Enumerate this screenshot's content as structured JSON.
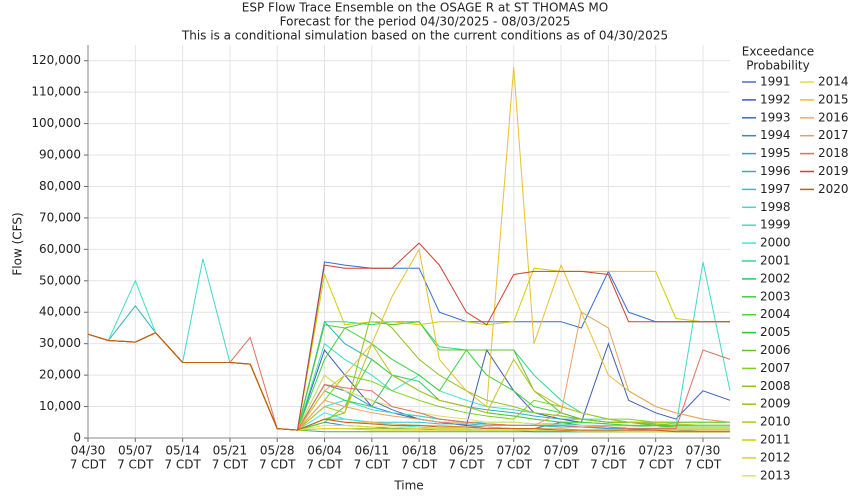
{
  "chart_data": {
    "type": "line",
    "title": "ESP Flow Trace Ensemble on the OSAGE R at ST THOMAS MO",
    "subtitles": [
      "Forecast for the period 04/30/2025 - 08/03/2025",
      "This is a conditional simulation based on the current conditions as of 04/30/2025"
    ],
    "x_label": "Time",
    "y_label": "Flow (CFS)",
    "legend_title": [
      "Exceedance",
      "Probability"
    ],
    "x": [
      "04/30",
      "05/03",
      "05/07",
      "05/10",
      "05/14",
      "05/17",
      "05/21",
      "05/24",
      "05/28",
      "05/31",
      "06/04",
      "06/07",
      "06/11",
      "06/14",
      "06/18",
      "06/21",
      "06/25",
      "06/28",
      "07/02",
      "07/05",
      "07/09",
      "07/12",
      "07/16",
      "07/19",
      "07/23",
      "07/26",
      "07/30",
      "08/03"
    ],
    "xlim": [
      "04/30",
      "08/03"
    ],
    "xticks": [
      "04/30",
      "05/07",
      "05/14",
      "05/21",
      "05/28",
      "06/04",
      "06/11",
      "06/18",
      "06/25",
      "07/02",
      "07/09",
      "07/16",
      "07/23",
      "07/30"
    ],
    "xtick_suffix": "7 CDT",
    "ylim": [
      0,
      125000
    ],
    "yticks": [
      0,
      {
        "value": 10000,
        "label": "10,000"
      },
      {
        "value": 20000,
        "label": "20,000"
      },
      {
        "value": 30000,
        "label": "30,000"
      },
      {
        "value": 40000,
        "label": "40,000"
      },
      {
        "value": 50000,
        "label": "50,000"
      },
      {
        "value": 60000,
        "label": "60,000"
      },
      {
        "value": 70000,
        "label": "70,000"
      },
      {
        "value": 80000,
        "label": "80,000"
      },
      {
        "value": 90000,
        "label": "90,000"
      },
      {
        "value": 100000,
        "label": "100,000"
      },
      {
        "value": 110000,
        "label": "110,000"
      },
      {
        "value": 120000,
        "label": "120,000"
      }
    ],
    "grid": true,
    "series": [
      {
        "name": "1991",
        "color": "#4a6fc0",
        "values": [
          33000,
          31000,
          30500,
          33500,
          24000,
          24000,
          24000,
          23500,
          3000,
          2500,
          17000,
          15000,
          12000,
          9000,
          6000,
          5000,
          4000,
          3500,
          3000,
          3000,
          5000,
          4000,
          3500,
          3000,
          2500,
          2500,
          2000,
          2000
        ]
      },
      {
        "name": "1992",
        "color": "#3d5bb5",
        "values": [
          33000,
          31000,
          30500,
          33500,
          24000,
          24000,
          24000,
          23500,
          3000,
          2500,
          28000,
          20000,
          10000,
          8000,
          6000,
          5000,
          4000,
          28000,
          15000,
          8000,
          6000,
          5000,
          30000,
          12000,
          8000,
          6000,
          15000,
          12000
        ]
      },
      {
        "name": "1993",
        "color": "#2f6fd0",
        "values": [
          33000,
          31000,
          30500,
          33500,
          24000,
          24000,
          24000,
          23500,
          3000,
          2500,
          56000,
          55000,
          54000,
          54000,
          54000,
          40000,
          37000,
          37000,
          37000,
          37000,
          37000,
          35000,
          53000,
          40000,
          37000,
          37000,
          37000,
          37000
        ]
      },
      {
        "name": "1994",
        "color": "#3d84c8",
        "values": [
          33000,
          31000,
          30500,
          33500,
          24000,
          24000,
          24000,
          23500,
          3000,
          2500,
          5000,
          4000,
          3500,
          3000,
          3000,
          2500,
          2500,
          2500,
          2500,
          2000,
          2000,
          2000,
          2000,
          2000,
          2000,
          2000,
          2000,
          2000
        ]
      },
      {
        "name": "1995",
        "color": "#2fa0d0",
        "values": [
          33000,
          31000,
          30500,
          33500,
          24000,
          24000,
          24000,
          23500,
          3000,
          2500,
          20000,
          15000,
          10000,
          8000,
          7000,
          6000,
          5000,
          4500,
          4000,
          4000,
          3500,
          3500,
          3000,
          3000,
          3000,
          3000,
          3000,
          3000
        ]
      },
      {
        "name": "1996",
        "color": "#2fb0c0",
        "values": [
          33000,
          31000,
          42000,
          33500,
          24000,
          24000,
          24000,
          23500,
          3000,
          2500,
          37000,
          30000,
          25000,
          20000,
          15000,
          12000,
          10000,
          9000,
          8000,
          7000,
          6000,
          6000,
          5000,
          5000,
          5000,
          5000,
          5000,
          5000
        ]
      },
      {
        "name": "1997",
        "color": "#30c0d8",
        "values": [
          33000,
          31000,
          30500,
          33500,
          24000,
          24000,
          24000,
          23500,
          3000,
          2500,
          6000,
          6000,
          5000,
          5000,
          5000,
          4500,
          4500,
          4000,
          4000,
          4000,
          3500,
          3500,
          3500,
          3000,
          3000,
          3000,
          3000,
          3000
        ]
      },
      {
        "name": "1998",
        "color": "#40d8d0",
        "values": [
          33000,
          31000,
          30500,
          33500,
          24000,
          57000,
          24000,
          23500,
          3000,
          2500,
          10000,
          12000,
          9000,
          8000,
          7000,
          6000,
          5000,
          5000,
          5000,
          4500,
          4500,
          4000,
          4000,
          4000,
          3500,
          3500,
          56000,
          15000
        ]
      },
      {
        "name": "1999",
        "color": "#40e0c0",
        "values": [
          33000,
          31000,
          50000,
          33500,
          24000,
          24000,
          24000,
          23500,
          3000,
          2500,
          30000,
          25000,
          20000,
          15000,
          20000,
          15000,
          12000,
          10000,
          9000,
          8000,
          7000,
          6000,
          6000,
          5000,
          5000,
          5000,
          5000,
          5000
        ]
      },
      {
        "name": "2000",
        "color": "#40e8e0",
        "values": [
          33000,
          31000,
          30500,
          33500,
          24000,
          24000,
          24000,
          23500,
          3000,
          2500,
          8000,
          6000,
          5000,
          4000,
          3500,
          3000,
          3000,
          2500,
          2500,
          2500,
          2000,
          2000,
          2000,
          2000,
          2000,
          2000,
          2000,
          2000
        ]
      },
      {
        "name": "2001",
        "color": "#30d890",
        "values": [
          33000,
          31000,
          30500,
          33500,
          24000,
          24000,
          24000,
          23500,
          3000,
          2500,
          37000,
          37000,
          36000,
          37000,
          37000,
          29000,
          28000,
          28000,
          28000,
          20000,
          12000,
          8000,
          6000,
          5000,
          4500,
          4000,
          4000,
          4000
        ]
      },
      {
        "name": "2002",
        "color": "#30c860",
        "values": [
          33000,
          31000,
          30500,
          33500,
          24000,
          24000,
          24000,
          23500,
          3000,
          2500,
          15000,
          12000,
          10000,
          20000,
          18000,
          12000,
          10000,
          8000,
          7000,
          6000,
          5000,
          5000,
          4500,
          4000,
          4000,
          3500,
          3500,
          3500
        ]
      },
      {
        "name": "2003",
        "color": "#40d040",
        "values": [
          33000,
          31000,
          30500,
          33500,
          24000,
          24000,
          24000,
          23500,
          3000,
          2500,
          25000,
          35000,
          30000,
          25000,
          20000,
          15000,
          28000,
          20000,
          15000,
          10000,
          8000,
          6000,
          5000,
          5000,
          4000,
          4000,
          4000,
          4000
        ]
      },
      {
        "name": "2004",
        "color": "#50d030",
        "values": [
          33000,
          31000,
          30500,
          33500,
          24000,
          24000,
          24000,
          23500,
          3000,
          2500,
          5000,
          10000,
          25000,
          20000,
          15000,
          12000,
          10000,
          8000,
          7000,
          6000,
          5000,
          5000,
          4500,
          4000,
          4000,
          3500,
          3500,
          3500
        ]
      },
      {
        "name": "2005",
        "color": "#30c030",
        "values": [
          33000,
          31000,
          30500,
          33500,
          24000,
          24000,
          24000,
          23500,
          3000,
          2500,
          2000,
          2000,
          2000,
          2000,
          2000,
          2000,
          2000,
          2000,
          2000,
          2000,
          2000,
          2000,
          2000,
          2000,
          2000,
          2000,
          2000,
          2000
        ]
      },
      {
        "name": "2006",
        "color": "#60c030",
        "values": [
          33000,
          31000,
          30500,
          33500,
          24000,
          24000,
          24000,
          23500,
          3000,
          2500,
          36000,
          35000,
          37000,
          36000,
          37000,
          28000,
          28000,
          28000,
          28000,
          15000,
          8000,
          6000,
          5000,
          5000,
          4000,
          4000,
          4000,
          4000
        ]
      },
      {
        "name": "2007",
        "color": "#80d020",
        "values": [
          33000,
          31000,
          30500,
          33500,
          24000,
          24000,
          24000,
          23500,
          3000,
          2500,
          12000,
          20000,
          18000,
          15000,
          12000,
          10000,
          8000,
          7000,
          6000,
          12000,
          10000,
          8000,
          6000,
          6000,
          5000,
          5000,
          5000,
          5000
        ]
      },
      {
        "name": "2008",
        "color": "#90c020",
        "values": [
          33000,
          31000,
          30500,
          33500,
          24000,
          24000,
          24000,
          23500,
          3000,
          2500,
          6000,
          8000,
          40000,
          35000,
          25000,
          20000,
          15000,
          12000,
          10000,
          8000,
          7000,
          6000,
          5000,
          5000,
          4500,
          4000,
          4000,
          4000
        ]
      },
      {
        "name": "2009",
        "color": "#a0c020",
        "values": [
          33000,
          31000,
          30500,
          33500,
          24000,
          24000,
          24000,
          23500,
          3000,
          2500,
          3000,
          3000,
          3000,
          3000,
          3000,
          3000,
          3000,
          2500,
          2500,
          2500,
          2500,
          2500,
          2500,
          2500,
          2500,
          2500,
          2500,
          2500
        ]
      },
      {
        "name": "2010",
        "color": "#c0c020",
        "values": [
          33000,
          31000,
          30500,
          33500,
          24000,
          24000,
          24000,
          23500,
          3000,
          2500,
          10000,
          8000,
          30000,
          20000,
          15000,
          12000,
          10000,
          8000,
          25000,
          15000,
          10000,
          8000,
          6000,
          5000,
          5000,
          4500,
          4000,
          4000
        ]
      },
      {
        "name": "2011",
        "color": "#d0d000",
        "values": [
          33000,
          31000,
          30500,
          33500,
          24000,
          24000,
          24000,
          23500,
          3000,
          2500,
          52000,
          36000,
          37000,
          37000,
          36000,
          37000,
          37000,
          36000,
          37000,
          54000,
          53000,
          53000,
          53000,
          53000,
          53000,
          38000,
          37000,
          37000
        ]
      },
      {
        "name": "2012",
        "color": "#e0d020",
        "values": [
          33000,
          31000,
          30500,
          33500,
          24000,
          24000,
          24000,
          23500,
          3000,
          2500,
          3000,
          3000,
          2500,
          2500,
          2500,
          2500,
          2500,
          2500,
          2500,
          2500,
          2500,
          2000,
          2000,
          2000,
          2000,
          2000,
          2000,
          2000
        ]
      },
      {
        "name": "2013",
        "color": "#e0e060",
        "values": [
          33000,
          31000,
          30500,
          33500,
          24000,
          24000,
          24000,
          23500,
          3000,
          2500,
          20000,
          15000,
          12000,
          10000,
          8000,
          7000,
          6000,
          5000,
          5000,
          4500,
          4000,
          4000,
          3500,
          3500,
          3500,
          3000,
          3000,
          3000
        ]
      },
      {
        "name": "2014",
        "color": "#e0e040",
        "values": [
          33000,
          31000,
          30500,
          33500,
          24000,
          24000,
          24000,
          23500,
          3000,
          2500,
          4000,
          4000,
          3500,
          3500,
          3000,
          3000,
          3000,
          2500,
          2500,
          2500,
          2500,
          2500,
          2500,
          2000,
          2000,
          2000,
          2000,
          2000
        ]
      },
      {
        "name": "2015",
        "color": "#e8c030",
        "values": [
          33000,
          31000,
          30500,
          33500,
          24000,
          24000,
          24000,
          23500,
          3000,
          2500,
          15000,
          20000,
          30000,
          45000,
          60000,
          25000,
          15000,
          10000,
          118000,
          30000,
          55000,
          40000,
          20000,
          15000,
          10000,
          8000,
          6000,
          5000
        ]
      },
      {
        "name": "2016",
        "color": "#f0b050",
        "values": [
          33000,
          31000,
          30500,
          33500,
          24000,
          24000,
          24000,
          23500,
          3000,
          2500,
          6000,
          5000,
          5000,
          4500,
          4000,
          4000,
          3500,
          3500,
          3000,
          3000,
          3000,
          2500,
          2500,
          2500,
          2500,
          2500,
          2500,
          2500
        ]
      },
      {
        "name": "2017",
        "color": "#e8a060",
        "values": [
          33000,
          31000,
          30500,
          33500,
          24000,
          24000,
          24000,
          23500,
          3000,
          2500,
          12000,
          10000,
          8000,
          7000,
          6000,
          5000,
          5000,
          4500,
          4000,
          4000,
          8000,
          40000,
          35000,
          15000,
          10000,
          8000,
          6000,
          5000
        ]
      },
      {
        "name": "2018",
        "color": "#e07060",
        "values": [
          33000,
          31000,
          30500,
          33500,
          24000,
          24000,
          24000,
          32000,
          3000,
          2500,
          17000,
          16000,
          15000,
          10000,
          8000,
          6000,
          5000,
          4500,
          4000,
          4000,
          4000,
          3500,
          3500,
          3000,
          3000,
          3000,
          28000,
          25000
        ]
      },
      {
        "name": "2019",
        "color": "#d04030",
        "values": [
          33000,
          31000,
          30500,
          33500,
          24000,
          24000,
          24000,
          23500,
          3000,
          2500,
          55000,
          54000,
          54000,
          54000,
          62000,
          55000,
          40000,
          36000,
          52000,
          53000,
          53000,
          53000,
          52000,
          37000,
          37000,
          37000,
          37000,
          37000
        ]
      },
      {
        "name": "2020",
        "color": "#c06010",
        "values": [
          33000,
          31000,
          30500,
          33500,
          24000,
          24000,
          24000,
          23500,
          3000,
          2500,
          6000,
          5000,
          4500,
          4000,
          4000,
          3500,
          3500,
          3000,
          3000,
          3000,
          2500,
          2500,
          2500,
          2500,
          2500,
          2000,
          2000,
          2000
        ]
      }
    ]
  }
}
